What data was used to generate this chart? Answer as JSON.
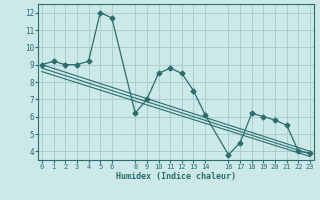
{
  "xlabel": "Humidex (Indice chaleur)",
  "background_color": "#cce8e8",
  "grid_color": "#aacece",
  "line_color": "#2a6e6e",
  "x_ticks": [
    0,
    1,
    2,
    3,
    4,
    5,
    6,
    8,
    9,
    10,
    11,
    12,
    13,
    14,
    16,
    17,
    18,
    19,
    20,
    21,
    22,
    23
  ],
  "y_ticks": [
    4,
    5,
    6,
    7,
    8,
    9,
    10,
    11,
    12
  ],
  "xlim": [
    -0.3,
    23.3
  ],
  "ylim": [
    3.5,
    12.5
  ],
  "series1_x": [
    0,
    1,
    2,
    3,
    4,
    5,
    6,
    8,
    9,
    10,
    11,
    12,
    13,
    14,
    16,
    17,
    18,
    19,
    20,
    21,
    22,
    23
  ],
  "series1_y": [
    9.0,
    9.2,
    9.0,
    9.0,
    9.2,
    12.0,
    11.7,
    6.2,
    7.0,
    8.5,
    8.8,
    8.5,
    7.5,
    6.1,
    3.8,
    4.5,
    6.2,
    6.0,
    5.8,
    5.5,
    4.0,
    3.9
  ],
  "trend1_x": [
    0,
    23
  ],
  "trend1_y": [
    9.0,
    4.0
  ],
  "trend2_x": [
    0,
    23
  ],
  "trend2_y": [
    8.8,
    3.85
  ],
  "trend3_x": [
    0,
    23
  ],
  "trend3_y": [
    8.6,
    3.7
  ]
}
